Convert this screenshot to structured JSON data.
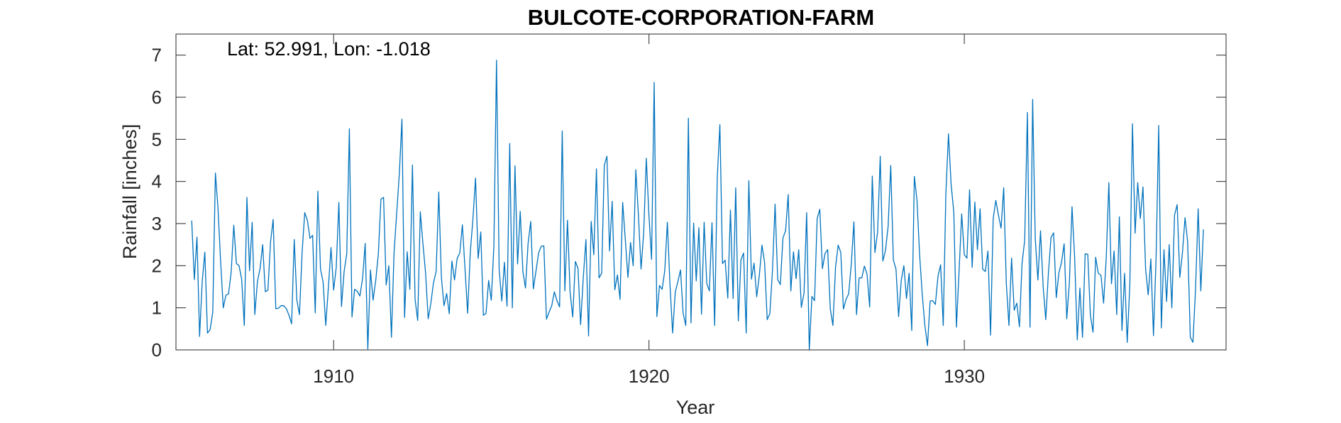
{
  "chart_data": {
    "type": "line",
    "title": "BULCOTE-CORPORATION-FARM",
    "xlabel": "Year",
    "ylabel": "Rainfall [inches]",
    "annotation": "Lat: 52.991, Lon: -1.018",
    "xlim": [
      1905.0,
      1938.3
    ],
    "ylim": [
      0,
      7.5
    ],
    "xticks": [
      1910,
      1920,
      1930
    ],
    "yticks": [
      0,
      1,
      2,
      3,
      4,
      5,
      6,
      7
    ],
    "grid": false,
    "line_color": "#0072BD",
    "series": [
      {
        "x_start": 1905.5,
        "x_step": 0.08333,
        "values": [
          3.07,
          1.67,
          2.68,
          0.32,
          1.62,
          2.32,
          0.4,
          0.48,
          0.9,
          4.2,
          3.35,
          2.08,
          1.0,
          1.3,
          1.33,
          1.84,
          2.96,
          2.05,
          2.0,
          1.68,
          0.58,
          3.62,
          1.88,
          3.03,
          0.84,
          1.62,
          1.93,
          2.5,
          1.38,
          1.42,
          2.56,
          3.1,
          0.98,
          0.99,
          1.05,
          1.05,
          0.98,
          0.82,
          0.62,
          2.62,
          1.18,
          0.84,
          2.32,
          3.26,
          3.08,
          2.65,
          2.72,
          0.88,
          3.77,
          1.92,
          1.61,
          0.58,
          1.48,
          2.43,
          1.42,
          1.96,
          3.5,
          1.03,
          1.86,
          2.28,
          5.25,
          0.78,
          1.44,
          1.39,
          1.28,
          1.69,
          2.53,
          0.02,
          1.9,
          1.18,
          1.64,
          2.27,
          3.58,
          3.62,
          1.54,
          2.0,
          0.3,
          2.32,
          3.25,
          4.18,
          5.48,
          0.77,
          2.33,
          1.44,
          4.39,
          1.2,
          0.7,
          3.28,
          2.52,
          1.83,
          0.74,
          1.1,
          1.59,
          1.86,
          3.75,
          1.72,
          1.05,
          1.34,
          0.86,
          2.11,
          1.66,
          2.17,
          2.3,
          2.97,
          1.92,
          0.87,
          2.31,
          3.1,
          4.08,
          2.17,
          2.8,
          0.82,
          0.87,
          1.65,
          1.18,
          2.47,
          6.88,
          1.91,
          1.16,
          2.08,
          1.04,
          4.9,
          1.0,
          4.37,
          2.04,
          3.29,
          1.87,
          1.47,
          2.53,
          3.05,
          1.45,
          1.87,
          2.3,
          2.46,
          2.47,
          0.73,
          0.9,
          1.05,
          1.38,
          1.17,
          1.02,
          5.2,
          1.4,
          3.08,
          1.37,
          0.78,
          2.1,
          1.94,
          0.6,
          1.72,
          2.62,
          0.33,
          3.05,
          2.26,
          4.3,
          1.71,
          1.82,
          4.38,
          4.6,
          2.35,
          3.53,
          1.43,
          1.78,
          1.2,
          3.5,
          2.62,
          1.72,
          2.55,
          2.0,
          4.28,
          3.2,
          1.92,
          2.77,
          4.55,
          3.2,
          2.15,
          6.35,
          0.79,
          1.53,
          1.44,
          1.88,
          3.03,
          1.53,
          0.4,
          1.37,
          1.62,
          1.9,
          0.87,
          0.58,
          5.5,
          0.64,
          3.01,
          1.64,
          2.9,
          0.85,
          3.03,
          1.58,
          1.4,
          3.02,
          0.58,
          4.09,
          5.35,
          2.05,
          2.13,
          1.23,
          3.32,
          1.22,
          3.85,
          0.69,
          2.14,
          2.3,
          0.4,
          4.02,
          1.68,
          2.06,
          1.26,
          1.77,
          2.49,
          2.08,
          0.72,
          0.86,
          1.88,
          3.46,
          1.67,
          1.55,
          2.66,
          2.83,
          3.69,
          1.4,
          2.33,
          1.69,
          2.38,
          1.01,
          1.35,
          3.26,
          0.0,
          1.27,
          1.17,
          3.12,
          3.34,
          1.93,
          2.29,
          2.38,
          0.98,
          0.58,
          1.96,
          2.49,
          2.31,
          0.97,
          1.2,
          1.33,
          2.04,
          3.04,
          0.84,
          1.71,
          1.71,
          1.99,
          1.8,
          1.02,
          4.13,
          2.31,
          2.8,
          4.6,
          2.11,
          2.36,
          2.93,
          4.38,
          2.13,
          1.92,
          0.79,
          1.65,
          2.0,
          1.22,
          1.82,
          0.46,
          4.12,
          3.55,
          2.26,
          1.32,
          0.58,
          0.1,
          1.16,
          1.17,
          1.08,
          1.75,
          2.02,
          0.58,
          3.71,
          5.13,
          3.93,
          3.27,
          0.54,
          1.86,
          3.23,
          2.26,
          2.18,
          3.8,
          1.96,
          3.51,
          2.38,
          3.35,
          1.92,
          1.86,
          2.35,
          0.35,
          3.12,
          3.55,
          3.2,
          2.89,
          3.85,
          1.58,
          0.58,
          2.18,
          0.94,
          1.11,
          0.55,
          2.06,
          2.6,
          5.64,
          0.54,
          5.95,
          2.64,
          1.66,
          2.83,
          1.51,
          0.72,
          1.82,
          2.67,
          2.78,
          1.24,
          1.83,
          2.08,
          2.52,
          0.74,
          1.6,
          3.4,
          2.2,
          0.24,
          1.47,
          0.3,
          2.28,
          2.27,
          0.82,
          0.42,
          2.2,
          1.82,
          1.77,
          1.11,
          2.17,
          3.97,
          1.57,
          2.35,
          0.84,
          3.16,
          0.46,
          1.82,
          0.18,
          1.55,
          5.37,
          2.77,
          3.97,
          3.12,
          3.87,
          1.92,
          1.31,
          2.16,
          0.34,
          2.19,
          5.33,
          0.52,
          2.38,
          1.15,
          2.5,
          1.0,
          3.2,
          3.45,
          1.72,
          2.3,
          3.14,
          2.56,
          0.3,
          0.18,
          1.45,
          3.35,
          1.4,
          2.86
        ]
      }
    ]
  }
}
